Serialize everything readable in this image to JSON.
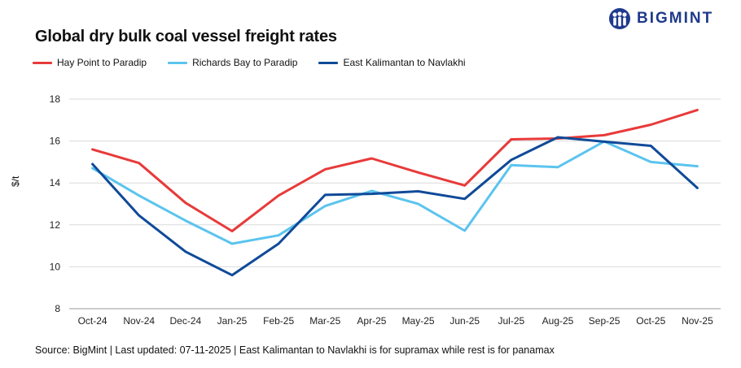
{
  "title": "Global dry bulk coal vessel freight rates",
  "logo": {
    "text": "BIGMINT",
    "icon": "people-emblem-icon",
    "color": "#1f3a8c"
  },
  "source_note": "Source: BigMint | Last updated: 07-11-2025 | East Kalimantan to Navlakhi is for supramax while rest is for panamax",
  "chart_data": {
    "type": "line",
    "title": "Global dry bulk coal vessel freight rates",
    "xlabel": "",
    "ylabel": "$/t",
    "ylim": [
      8,
      18
    ],
    "yticks": [
      8,
      10,
      12,
      14,
      16,
      18
    ],
    "grid": true,
    "legend_position": "top-left",
    "categories": [
      "Oct-24",
      "Nov-24",
      "Dec-24",
      "Jan-25",
      "Feb-25",
      "Mar-25",
      "Apr-25",
      "May-25",
      "Jun-25",
      "Jul-25",
      "Aug-25",
      "Sep-25",
      "Oct-25",
      "Nov-25"
    ],
    "series": [
      {
        "name": "Hay Point to Paradip",
        "color": "#e83a3a",
        "values": [
          15.6,
          14.95,
          13.05,
          11.7,
          13.4,
          14.65,
          15.17,
          14.5,
          13.88,
          16.08,
          16.12,
          16.28,
          16.78,
          17.48
        ]
      },
      {
        "name": "Richards Bay to Paradip",
        "color": "#5bc4ee",
        "values": [
          14.7,
          13.4,
          12.2,
          11.1,
          11.5,
          12.9,
          13.62,
          13.0,
          11.72,
          14.85,
          14.75,
          15.98,
          15.0,
          14.8
        ]
      },
      {
        "name": "East Kalimantan to Navlakhi",
        "color": "#0f4a99",
        "values": [
          14.9,
          12.45,
          10.72,
          9.6,
          11.1,
          13.43,
          13.48,
          13.6,
          13.24,
          15.1,
          16.18,
          15.97,
          15.77,
          13.76
        ]
      }
    ]
  }
}
